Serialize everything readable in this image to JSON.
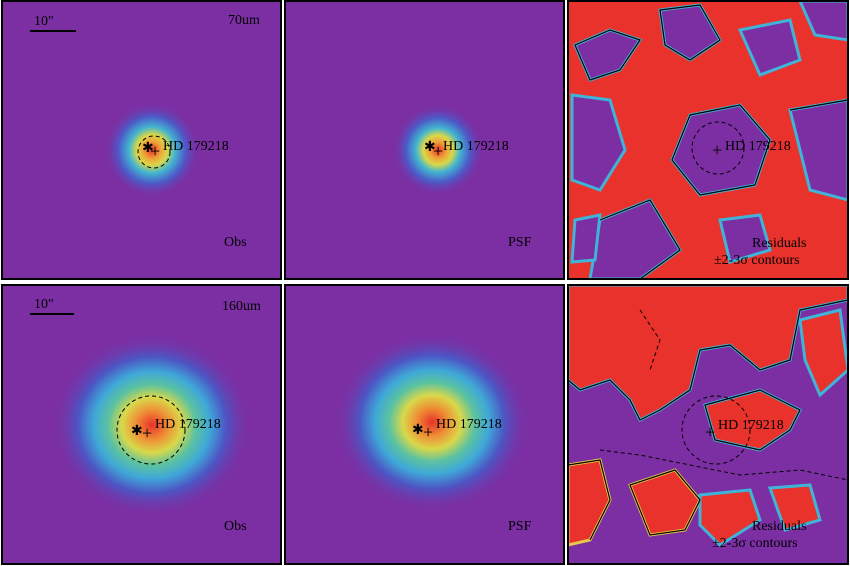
{
  "figure": {
    "star_label": "HD 179218",
    "scale_bar_label": "10\"",
    "rows": [
      {
        "band": "70um",
        "panels": [
          {
            "id": "obs",
            "caption": "Obs"
          },
          {
            "id": "psf",
            "caption": "PSF"
          },
          {
            "id": "residuals",
            "caption_line1": "Residuals",
            "caption_line2": "±2-3σ contours"
          }
        ]
      },
      {
        "band": "160um",
        "panels": [
          {
            "id": "obs",
            "caption": "Obs"
          },
          {
            "id": "psf",
            "caption": "PSF"
          },
          {
            "id": "residuals",
            "caption_line1": "Residuals",
            "caption_line2": "±2-3σ contours"
          }
        ]
      }
    ],
    "colors": {
      "background": "#7b2fa3",
      "residual_high": "#e8322b",
      "cool": "#4a56c8",
      "mid": "#3fb4d8",
      "warm": "#e8c74a",
      "hot": "#e8322b"
    }
  }
}
